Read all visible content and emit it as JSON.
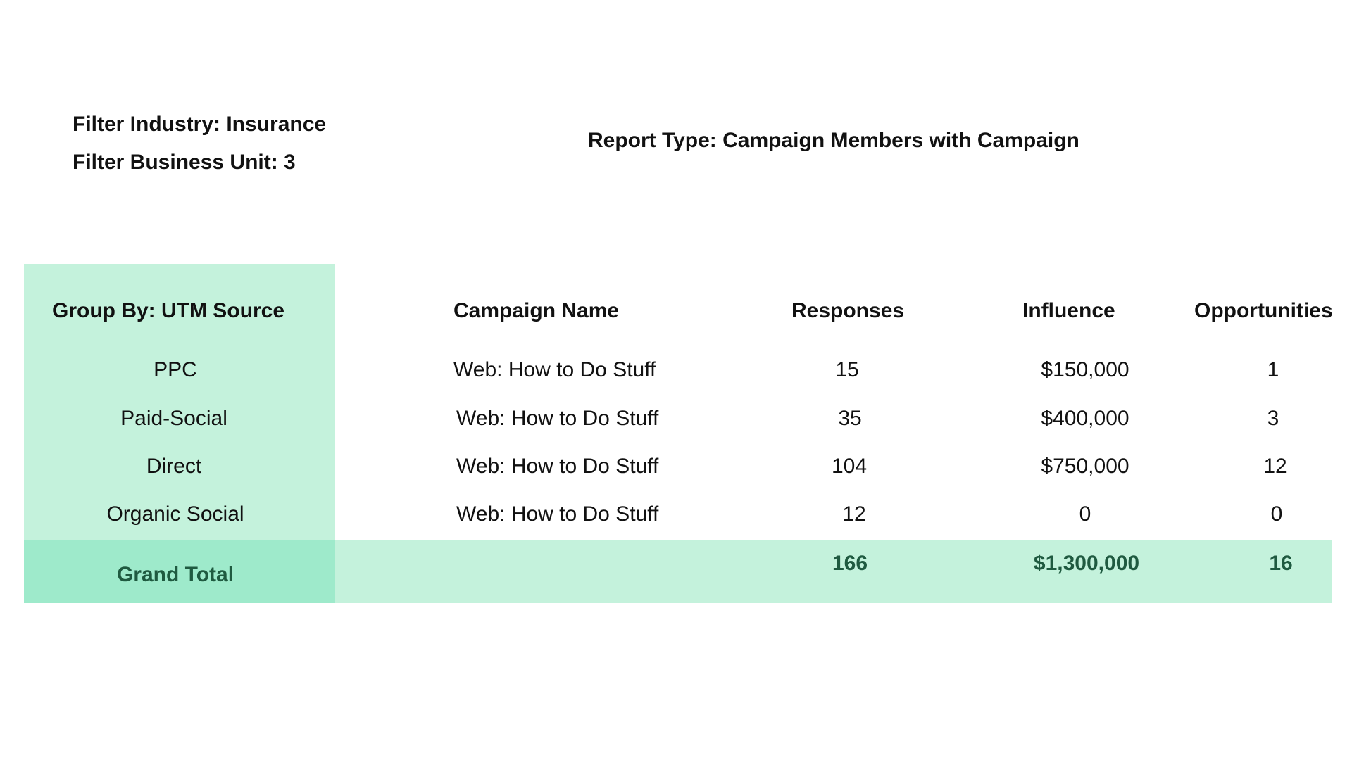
{
  "filters": {
    "industry": "Filter Industry: Insurance",
    "business_unit": "Filter Business Unit: 3"
  },
  "report_type": "Report Type: Campaign Members with Campaign",
  "table": {
    "headers": {
      "group_by": "Group By: UTM Source",
      "campaign_name": "Campaign Name",
      "responses": "Responses",
      "influence": "Influence",
      "opportunities": "Opportunities"
    },
    "rows": [
      {
        "source": "PPC",
        "campaign": "Web: How to Do Stuff",
        "responses": "15",
        "influence": "$150,000",
        "opportunities": "1"
      },
      {
        "source": "Paid-Social",
        "campaign": "Web: How to Do Stuff",
        "responses": "35",
        "influence": "$400,000",
        "opportunities": "3"
      },
      {
        "source": "Direct",
        "campaign": "Web: How to Do Stuff",
        "responses": "104",
        "influence": "$750,000",
        "opportunities": "12"
      },
      {
        "source": "Organic Social",
        "campaign": "Web: How to Do Stuff",
        "responses": "12",
        "influence": "0",
        "opportunities": "0"
      }
    ],
    "grand_total": {
      "label": "Grand Total",
      "responses": "166",
      "influence": "$1,300,000",
      "opportunities": "16"
    }
  },
  "colors": {
    "group_column_bg": "#c4f2dc",
    "grand_total_bg": "#c4f2dc",
    "grand_total_label_bg": "#9eeacb",
    "grand_total_text": "#1f5a40"
  }
}
